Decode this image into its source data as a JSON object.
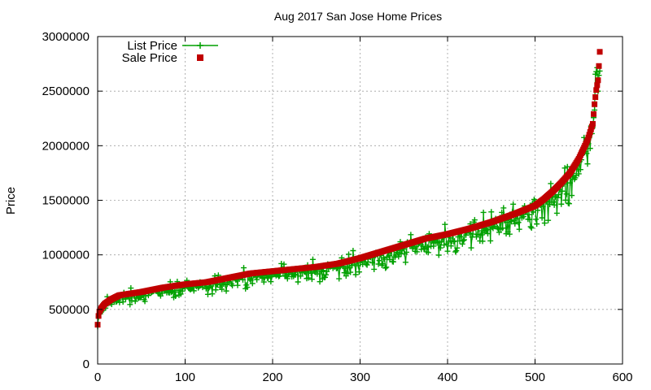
{
  "chart_data": {
    "type": "scatter",
    "title": "Aug 2017 San Jose Home Prices",
    "xlabel": "",
    "ylabel": "Price",
    "xlim": [
      0,
      600
    ],
    "ylim": [
      0,
      3000000
    ],
    "x_ticks": [
      0,
      100,
      200,
      300,
      400,
      500,
      600
    ],
    "y_ticks": [
      0,
      500000,
      1000000,
      1500000,
      2000000,
      2500000,
      3000000
    ],
    "grid": true,
    "legend_position": "top-left",
    "sale_curve": [
      [
        0,
        360000
      ],
      [
        1,
        440000
      ],
      [
        2,
        480000
      ],
      [
        4,
        510000
      ],
      [
        8,
        550000
      ],
      [
        15,
        590000
      ],
      [
        25,
        630000
      ],
      [
        50,
        660000
      ],
      [
        75,
        700000
      ],
      [
        100,
        730000
      ],
      [
        125,
        750000
      ],
      [
        150,
        790000
      ],
      [
        175,
        830000
      ],
      [
        200,
        850000
      ],
      [
        225,
        870000
      ],
      [
        250,
        890000
      ],
      [
        275,
        920000
      ],
      [
        300,
        970000
      ],
      [
        325,
        1030000
      ],
      [
        350,
        1090000
      ],
      [
        375,
        1150000
      ],
      [
        400,
        1190000
      ],
      [
        425,
        1240000
      ],
      [
        450,
        1300000
      ],
      [
        475,
        1370000
      ],
      [
        500,
        1450000
      ],
      [
        510,
        1510000
      ],
      [
        520,
        1580000
      ],
      [
        530,
        1660000
      ],
      [
        540,
        1750000
      ],
      [
        550,
        1880000
      ],
      [
        560,
        2050000
      ],
      [
        566,
        2200000
      ],
      [
        568,
        2380000
      ],
      [
        570,
        2510000
      ],
      [
        572,
        2600000
      ],
      [
        574,
        2860000
      ]
    ],
    "series": [
      {
        "name": "List Price",
        "color": "#00a000",
        "marker": "plus",
        "line": true
      },
      {
        "name": "Sale Price",
        "color": "#c00000",
        "marker": "square",
        "line": false
      }
    ]
  }
}
